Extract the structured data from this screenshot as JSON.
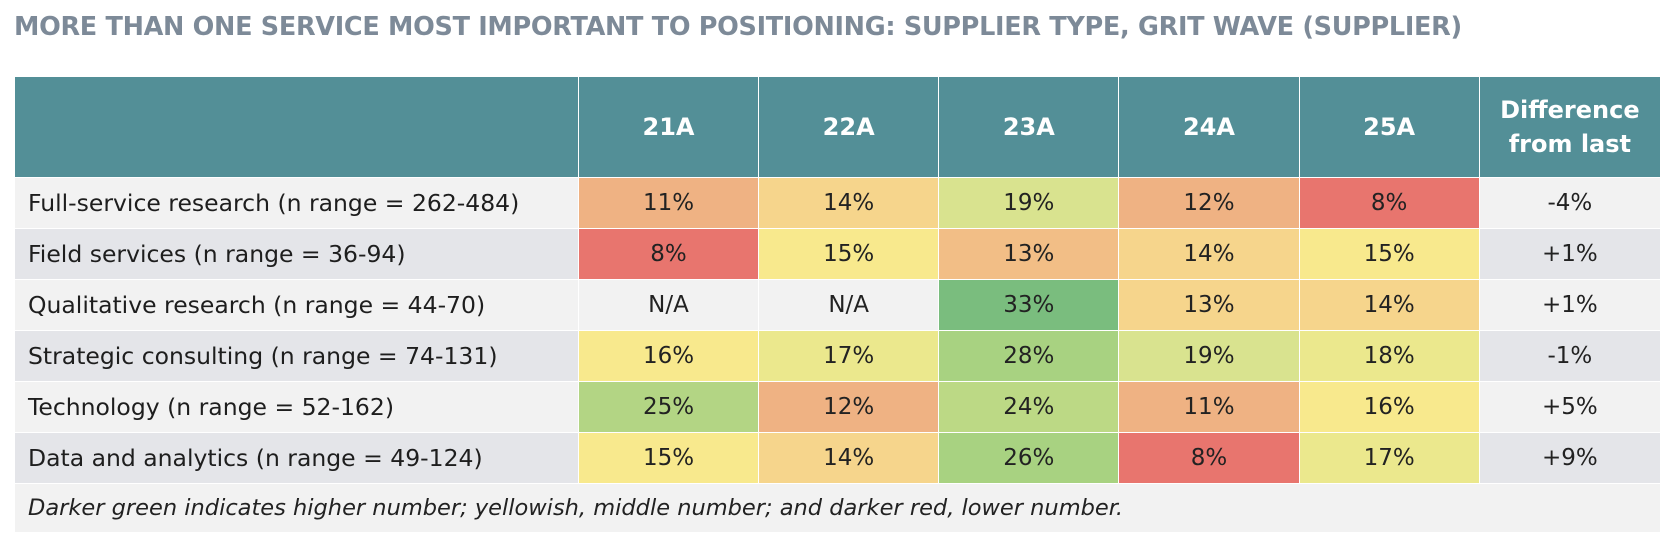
{
  "page": {
    "title": "MORE THAN ONE SERVICE MOST IMPORTANT TO POSITIONING: SUPPLIER TYPE, GRIT WAVE (SUPPLIER)",
    "note": "Darker green indicates higher number; yellowish, middle number; and darker red, lower number."
  },
  "chart_data": {
    "type": "table",
    "title": "MORE THAN ONE SERVICE MOST IMPORTANT TO POSITIONING: SUPPLIER TYPE, GRIT WAVE (SUPPLIER)",
    "columns": [
      "21A",
      "22A",
      "23A",
      "24A",
      "25A"
    ],
    "diff_header_lines": [
      "Difference",
      "from last"
    ],
    "rows": [
      {
        "label": "Full-service research (n range = 262-484)",
        "values": [
          "11%",
          "14%",
          "19%",
          "12%",
          "8%"
        ],
        "colors": [
          "#efb283",
          "#f6d58c",
          "#d9e38f",
          "#efb283",
          "#e8756e"
        ],
        "diff": "-4%"
      },
      {
        "label": "Field services (n range = 36-94)",
        "values": [
          "8%",
          "15%",
          "13%",
          "14%",
          "15%"
        ],
        "colors": [
          "#e8756e",
          "#f8e98d",
          "#f2be86",
          "#f6d58c",
          "#f8e98d"
        ],
        "diff": "+1%"
      },
      {
        "label": "Qualitative research (n range = 44-70)",
        "values": [
          "N/A",
          "N/A",
          "33%",
          "13%",
          "14%"
        ],
        "colors": [
          null,
          null,
          "#7abd7e",
          "#f6d58c",
          "#f6d58c"
        ],
        "diff": "+1%"
      },
      {
        "label": "Strategic consulting (n range = 74-131)",
        "values": [
          "16%",
          "17%",
          "28%",
          "19%",
          "18%"
        ],
        "colors": [
          "#f8e98d",
          "#ebe88d",
          "#a8d281",
          "#d9e38f",
          "#ebe88d"
        ],
        "diff": "-1%"
      },
      {
        "label": "Technology (n range = 52-162)",
        "values": [
          "25%",
          "12%",
          "24%",
          "11%",
          "16%"
        ],
        "colors": [
          "#b3d584",
          "#efb283",
          "#bcd985",
          "#efb283",
          "#f8e98d"
        ],
        "diff": "+5%"
      },
      {
        "label": "Data and analytics (n range = 49-124)",
        "values": [
          "15%",
          "14%",
          "26%",
          "8%",
          "17%"
        ],
        "colors": [
          "#f8e98d",
          "#f6d58c",
          "#a8d281",
          "#e8756e",
          "#ebe88d"
        ],
        "diff": "+9%"
      }
    ]
  }
}
